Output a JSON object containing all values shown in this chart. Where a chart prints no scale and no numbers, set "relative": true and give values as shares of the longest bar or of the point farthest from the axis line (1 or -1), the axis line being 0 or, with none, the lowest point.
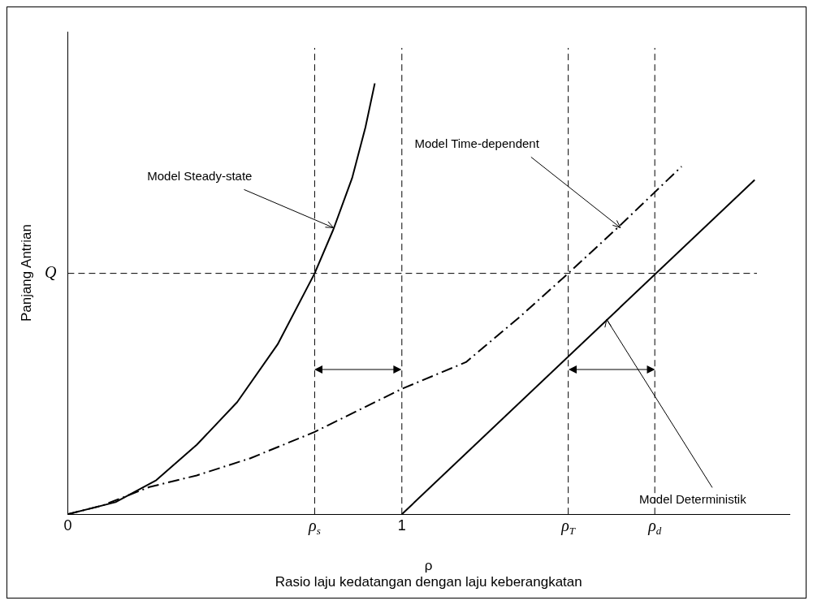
{
  "chart_data": {
    "type": "line",
    "relative": true,
    "xlabel": "ρ\nRasio laju kedatangan dengan laju keberangkatan",
    "ylabel": "Panjang Antrian",
    "xlim": [
      0,
      2.16
    ],
    "ylim": [
      0,
      1.12
    ],
    "xticks": [
      0,
      {
        "value": 0.739,
        "label": "ρ$_{s}$"
      },
      1,
      {
        "value": 1.498,
        "label": "ρ$_{T}$"
      },
      {
        "value": 1.757,
        "label": "ρ$_{d}$"
      }
    ],
    "series": [
      {
        "type": "line",
        "color": "#000000",
        "line_style": "solid",
        "x": [
          0,
          0.143,
          0.265,
          0.386,
          0.507,
          0.628,
          0.739,
          0.795,
          0.851,
          0.891,
          0.919
        ],
        "values": [
          0,
          0.028,
          0.079,
          0.161,
          0.26,
          0.394,
          0.559,
          0.661,
          0.78,
          0.898,
          1
        ]
      },
      {
        "type": "line",
        "color": "#000000",
        "line_style": "dashed",
        "x": [
          0,
          0.103,
          0.244,
          0.386,
          0.547,
          0.739,
          1,
          1.192,
          1.35,
          1.498,
          1.65,
          1.837
        ],
        "values": [
          0,
          0.02,
          0.063,
          0.09,
          0.13,
          0.191,
          0.291,
          0.353,
          0.456,
          0.559,
          0.668,
          0.807
        ]
      },
      {
        "type": "line",
        "color": "#000000",
        "line_style": "solid",
        "x": [
          1,
          2.056
        ],
        "values": [
          0,
          0.776
        ]
      }
    ],
    "ref_lines": [
      {
        "axis": "y",
        "value": 0.559,
        "label": "Q",
        "line_style": "dashed"
      },
      {
        "axis": "x",
        "value": 1,
        "line_style": "dashed"
      },
      {
        "axis": "x",
        "value": 0.739,
        "line_style": "dashed"
      },
      {
        "axis": "x",
        "value": 1.498,
        "line_style": "dashed"
      },
      {
        "axis": "x",
        "value": 1.757,
        "line_style": "dashed"
      }
    ],
    "annotations": [
      {
        "text": "Model Steady-state",
        "x": 0.795,
        "y": 0.665
      },
      {
        "text": "Model Time-dependent",
        "x": 1.654,
        "y": 0.665
      },
      {
        "text": "Model Deterministik",
        "x": 1.613,
        "y": 0.452
      }
    ],
    "grid": false,
    "legend": false,
    "marker": "none"
  }
}
